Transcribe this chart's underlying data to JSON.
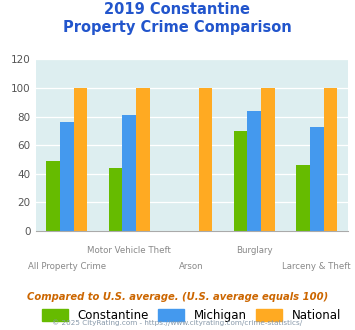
{
  "title_line1": "2019 Constantine",
  "title_line2": "Property Crime Comparison",
  "series": {
    "Constantine": [
      49,
      44,
      0,
      70,
      46
    ],
    "Michigan": [
      76,
      81,
      0,
      84,
      73
    ],
    "National": [
      100,
      100,
      100,
      100,
      100
    ]
  },
  "colors": {
    "Constantine": "#66bb00",
    "Michigan": "#4499ee",
    "National": "#ffaa22"
  },
  "ylim": [
    0,
    120
  ],
  "yticks": [
    0,
    20,
    40,
    60,
    80,
    100,
    120
  ],
  "plot_bg": "#ddeef0",
  "title_color": "#2255cc",
  "footer_text": "Compared to U.S. average. (U.S. average equals 100)",
  "footer_color": "#cc6600",
  "copyright_text": "© 2025 CityRating.com - https://www.cityrating.com/crime-statistics/",
  "copyright_color": "#8899aa",
  "legend_labels": [
    "Constantine",
    "Michigan",
    "National"
  ],
  "bar_width": 0.22,
  "x_label_top": [
    "",
    "Motor Vehicle Theft",
    "",
    "Burglary",
    ""
  ],
  "x_label_bottom": [
    "All Property Crime",
    "",
    "Arson",
    "",
    "Larceny & Theft"
  ]
}
